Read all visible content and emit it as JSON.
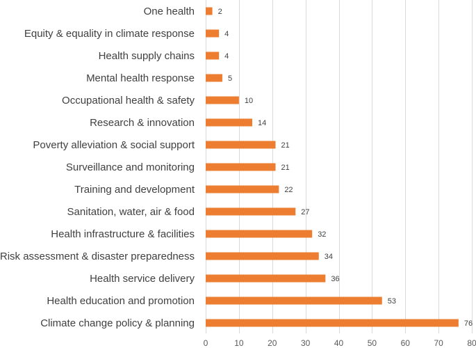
{
  "chart_data": {
    "type": "bar",
    "orientation": "horizontal",
    "title": "",
    "xlabel": "",
    "ylabel": "",
    "xlim": [
      0,
      80
    ],
    "xticks": [
      0,
      10,
      20,
      30,
      40,
      50,
      60,
      70,
      80
    ],
    "grid": true,
    "legend": "none",
    "bar_color": "#ED7D31",
    "categories": [
      "One health",
      "Equity & equality in climate response",
      "Health supply chains",
      "Mental health response",
      "Occupational health & safety",
      "Research & innovation",
      "Poverty alleviation & social support",
      "Surveillance and monitoring",
      "Training and development",
      "Sanitation, water, air & food",
      "Health infrastructure & facilities",
      "Risk assessment & disaster preparedness",
      "Health service delivery",
      "Health education and promotion",
      "Climate change policy & planning"
    ],
    "values": [
      2,
      4,
      4,
      5,
      10,
      14,
      21,
      21,
      22,
      27,
      32,
      34,
      36,
      53,
      76
    ]
  }
}
